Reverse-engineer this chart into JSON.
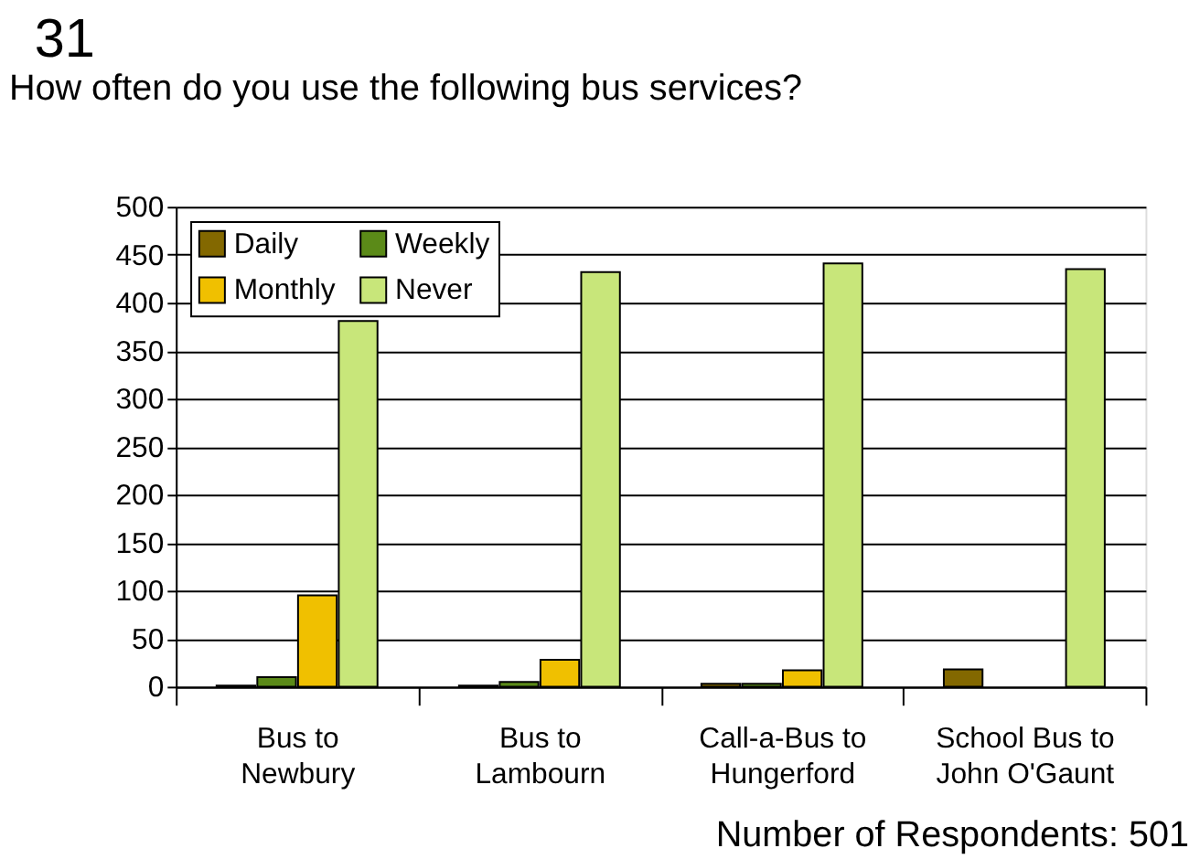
{
  "chart_data": {
    "type": "bar",
    "title": "How often do you use the following bus services?",
    "categories": [
      "Bus to Newbury",
      "Bus to Lambourn",
      "Call-a-Bus to Hungerford",
      "School Bus to John O'Gaunt"
    ],
    "series": [
      {
        "name": "Daily",
        "color": "#836800",
        "values": [
          1,
          1,
          3,
          18
        ]
      },
      {
        "name": "Weekly",
        "color": "#5b8a18",
        "values": [
          10,
          5,
          3,
          0
        ]
      },
      {
        "name": "Monthly",
        "color": "#f0c000",
        "values": [
          95,
          28,
          17,
          0
        ]
      },
      {
        "name": "Never",
        "color": "#c8e67a",
        "values": [
          381,
          432,
          441,
          435
        ]
      }
    ],
    "ylim": [
      0,
      500
    ],
    "yticks": [
      0,
      50,
      100,
      150,
      200,
      250,
      300,
      350,
      400,
      450,
      500
    ],
    "grid": "y",
    "legend": "top left",
    "annotations": [
      "31",
      "Number of Respondents: 501"
    ]
  }
}
